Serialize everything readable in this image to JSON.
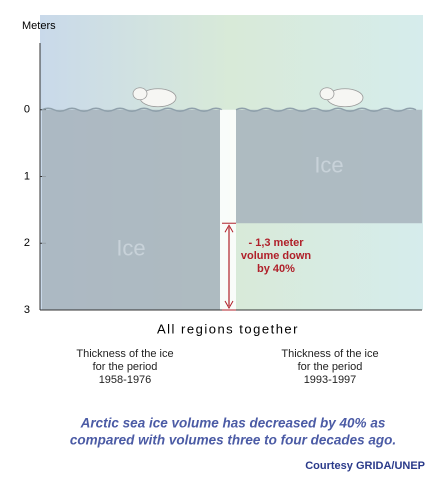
{
  "chart_data": {
    "type": "bar",
    "y_label": "Meters",
    "subtitle": "All regions together",
    "categories": [
      "Thickness of the ice\nfor the period\n1958-1976",
      "Thickness of the ice\nfor the period\n1993-1997"
    ],
    "values": [
      3,
      1.7
    ],
    "bar_labels": [
      "Ice",
      "Ice"
    ],
    "color": "#a7b3bc",
    "ylim": [
      -1,
      3
    ],
    "yticks": [
      0,
      1,
      2,
      3
    ],
    "y_inverted": true,
    "annotation": [
      "- 1,3 meter",
      "volume down",
      "by 40%"
    ],
    "caption": [
      "Arctic sea ice volume has decreased by 40% as",
      "compared with volumes three to four decades ago."
    ],
    "credit": "Courtesy GRIDA/UNEP"
  }
}
